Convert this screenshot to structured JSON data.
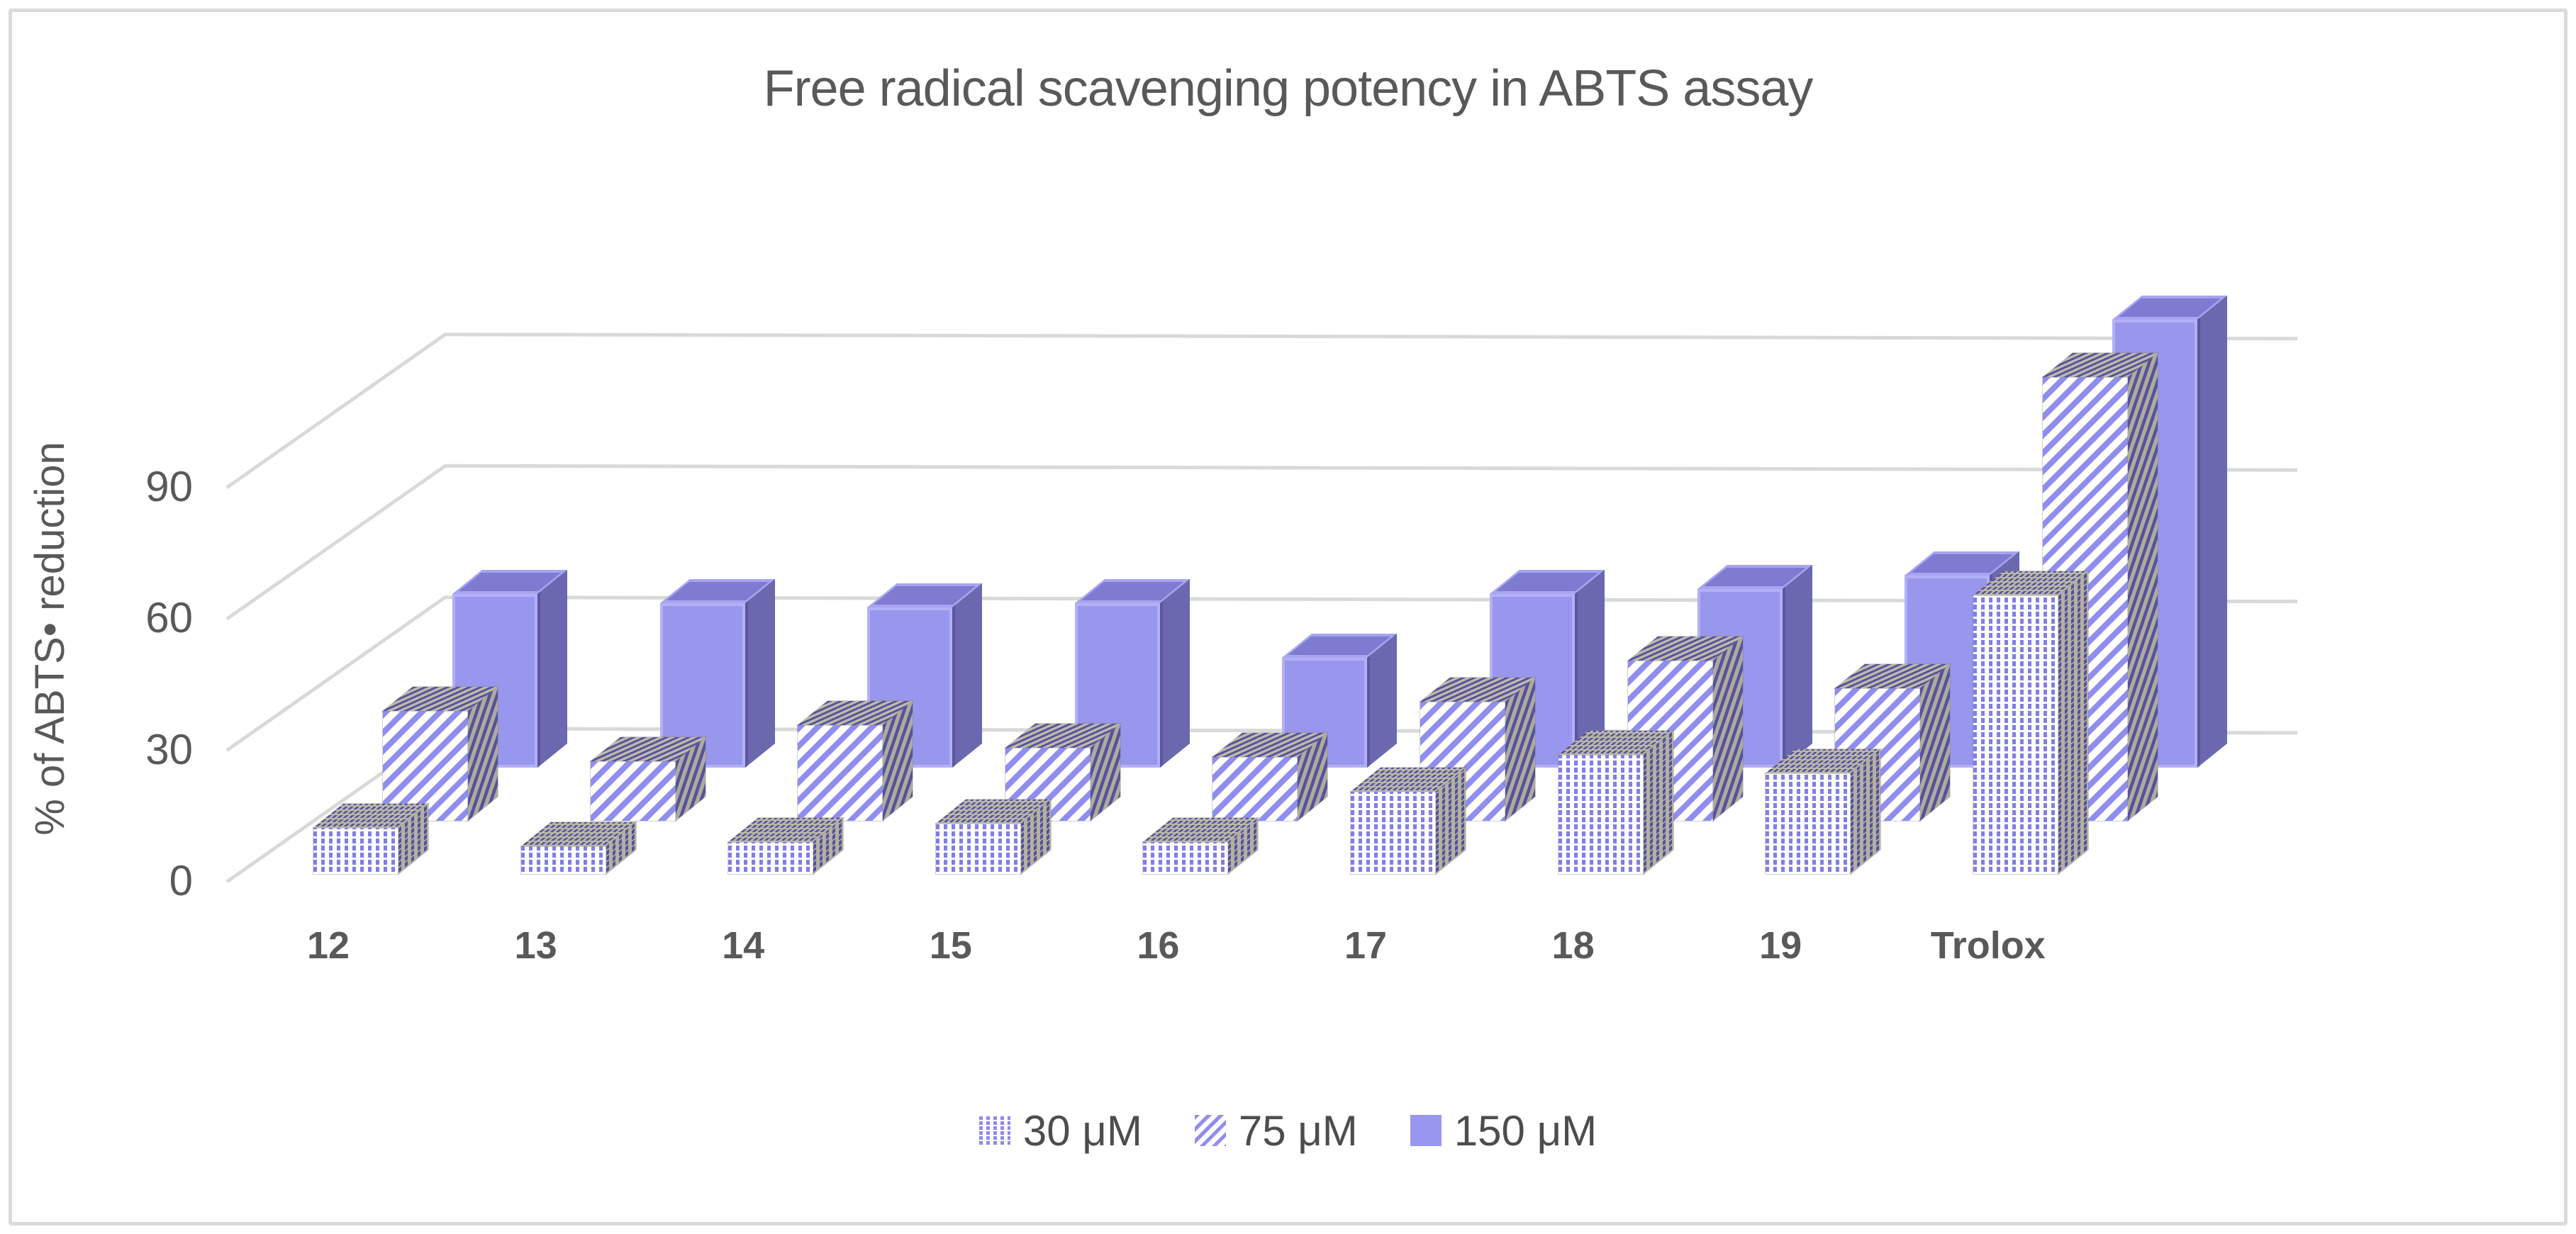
{
  "chart_data": {
    "type": "bar",
    "variant": "3d-clustered-column-depth",
    "title": "Free radical scavenging potency in ABTS assay",
    "xlabel": "",
    "ylabel": "% of ABTS• reduction",
    "categories": [
      "12",
      "13",
      "14",
      "15",
      "16",
      "17",
      "18",
      "19",
      "Trolox"
    ],
    "series": [
      {
        "name": "30 μM",
        "pattern": "dotted",
        "values": [
          10,
          6,
          7,
          11,
          7,
          18,
          26,
          22,
          61
        ]
      },
      {
        "name": "75 μM",
        "pattern": "diagonal-stripes",
        "values": [
          24,
          13,
          21,
          16,
          14,
          26,
          35,
          29,
          97
        ]
      },
      {
        "name": "150 μM",
        "pattern": "solid",
        "values": [
          38,
          36,
          35,
          36,
          24,
          38,
          39,
          42,
          98
        ]
      }
    ],
    "y_ticks": [
      0,
      30,
      60,
      90
    ],
    "ylim": [
      0,
      100
    ],
    "grid": true,
    "legend_position": "bottom"
  },
  "colors": {
    "bar_purple_front": "#9996ED",
    "bar_purple_top": "#7E7BD0",
    "bar_purple_side": "#6B68B0",
    "pattern_purple": "#8F8CF0",
    "gridline": "#D9D9D9",
    "text": "#595959",
    "frame_border": "#DBDBDB"
  }
}
